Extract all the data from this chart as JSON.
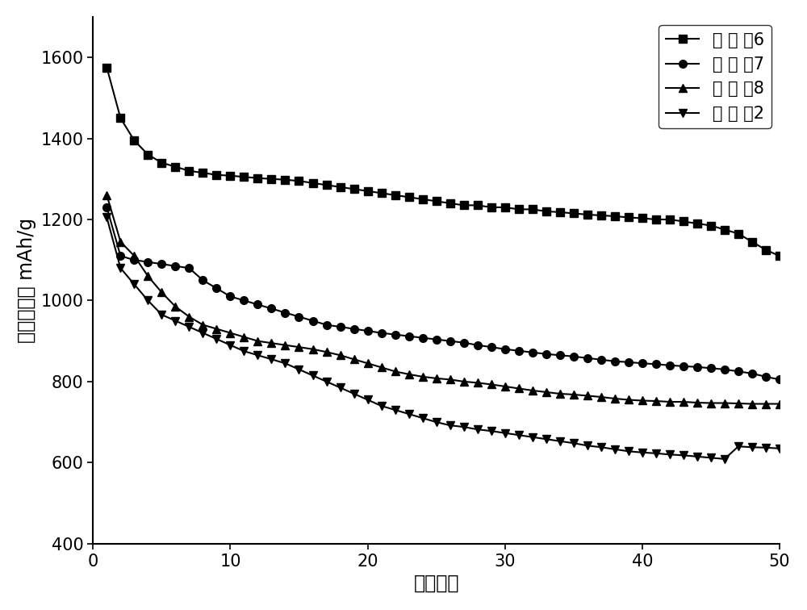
{
  "series": {
    "ex6": {
      "label": "实 施 例6",
      "marker": "s",
      "x": [
        1,
        2,
        3,
        4,
        5,
        6,
        7,
        8,
        9,
        10,
        11,
        12,
        13,
        14,
        15,
        16,
        17,
        18,
        19,
        20,
        21,
        22,
        23,
        24,
        25,
        26,
        27,
        28,
        29,
        30,
        31,
        32,
        33,
        34,
        35,
        36,
        37,
        38,
        39,
        40,
        41,
        42,
        43,
        44,
        45,
        46,
        47,
        48,
        49,
        50
      ],
      "y": [
        1575,
        1450,
        1395,
        1360,
        1340,
        1330,
        1320,
        1315,
        1310,
        1308,
        1305,
        1302,
        1300,
        1298,
        1295,
        1290,
        1285,
        1280,
        1275,
        1270,
        1265,
        1260,
        1255,
        1250,
        1245,
        1240,
        1235,
        1235,
        1230,
        1230,
        1225,
        1225,
        1220,
        1218,
        1215,
        1212,
        1210,
        1208,
        1205,
        1203,
        1200,
        1200,
        1195,
        1190,
        1185,
        1175,
        1165,
        1145,
        1125,
        1110
      ]
    },
    "ex7": {
      "label": "实 施 例7",
      "marker": "o",
      "x": [
        1,
        2,
        3,
        4,
        5,
        6,
        7,
        8,
        9,
        10,
        11,
        12,
        13,
        14,
        15,
        16,
        17,
        18,
        19,
        20,
        21,
        22,
        23,
        24,
        25,
        26,
        27,
        28,
        29,
        30,
        31,
        32,
        33,
        34,
        35,
        36,
        37,
        38,
        39,
        40,
        41,
        42,
        43,
        44,
        45,
        46,
        47,
        48,
        49,
        50
      ],
      "y": [
        1230,
        1110,
        1100,
        1095,
        1090,
        1085,
        1080,
        1050,
        1030,
        1010,
        1000,
        990,
        980,
        970,
        960,
        950,
        940,
        935,
        930,
        925,
        920,
        916,
        912,
        908,
        904,
        900,
        896,
        890,
        885,
        880,
        876,
        872,
        868,
        865,
        862,
        858,
        854,
        850,
        848,
        845,
        843,
        840,
        838,
        836,
        833,
        830,
        825,
        820,
        812,
        805
      ]
    },
    "ex8": {
      "label": "实 施 例8",
      "marker": "^",
      "x": [
        1,
        2,
        3,
        4,
        5,
        6,
        7,
        8,
        9,
        10,
        11,
        12,
        13,
        14,
        15,
        16,
        17,
        18,
        19,
        20,
        21,
        22,
        23,
        24,
        25,
        26,
        27,
        28,
        29,
        30,
        31,
        32,
        33,
        34,
        35,
        36,
        37,
        38,
        39,
        40,
        41,
        42,
        43,
        44,
        45,
        46,
        47,
        48,
        49,
        50
      ],
      "y": [
        1260,
        1145,
        1110,
        1060,
        1020,
        985,
        960,
        940,
        930,
        920,
        910,
        900,
        895,
        890,
        885,
        880,
        873,
        865,
        855,
        845,
        835,
        825,
        818,
        812,
        808,
        805,
        800,
        797,
        793,
        788,
        783,
        778,
        774,
        770,
        768,
        765,
        762,
        758,
        755,
        753,
        752,
        750,
        750,
        748,
        747,
        747,
        746,
        745,
        745,
        745
      ]
    },
    "comp2": {
      "label": "对 比 例2",
      "marker": "v",
      "x": [
        1,
        2,
        3,
        4,
        5,
        6,
        7,
        8,
        9,
        10,
        11,
        12,
        13,
        14,
        15,
        16,
        17,
        18,
        19,
        20,
        21,
        22,
        23,
        24,
        25,
        26,
        27,
        28,
        29,
        30,
        31,
        32,
        33,
        34,
        35,
        36,
        37,
        38,
        39,
        40,
        41,
        42,
        43,
        44,
        45,
        46,
        47,
        48,
        49,
        50
      ],
      "y": [
        1205,
        1080,
        1040,
        1000,
        965,
        950,
        935,
        920,
        905,
        890,
        875,
        865,
        855,
        845,
        830,
        815,
        800,
        785,
        770,
        755,
        740,
        730,
        720,
        710,
        700,
        692,
        688,
        682,
        678,
        673,
        668,
        663,
        658,
        653,
        648,
        642,
        638,
        633,
        628,
        625,
        623,
        620,
        618,
        615,
        612,
        609,
        640,
        638,
        637,
        635
      ]
    }
  },
  "xlabel": "循环次数",
  "ylabel": "放电比容量 mAh/g",
  "xlim": [
    0,
    50
  ],
  "ylim": [
    400,
    1700
  ],
  "yticks": [
    400,
    600,
    800,
    1000,
    1200,
    1400,
    1600
  ],
  "xticks": [
    0,
    10,
    20,
    30,
    40,
    50
  ],
  "color": "black",
  "linewidth": 1.5,
  "markersize": 7,
  "legend_loc": "upper right",
  "legend_fontsize": 15,
  "axis_fontsize": 17,
  "tick_fontsize": 15,
  "background_color": "#ffffff"
}
